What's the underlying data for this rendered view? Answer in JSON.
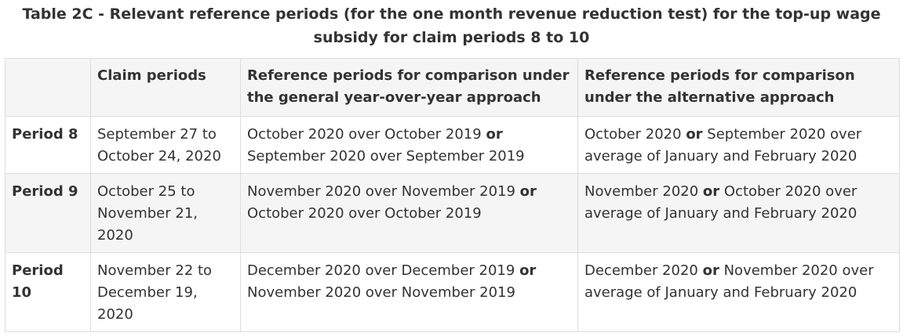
{
  "caption": "Table 2C - Relevant reference periods (for the one month revenue reduction test) for the top-up wage subsidy for claim periods 8 to 10",
  "headers": {
    "blank": "",
    "claim_periods": "Claim periods",
    "general": "Reference periods for comparison under the general year-over-year approach",
    "alternative": "Reference periods for comparison under the alternative approach"
  },
  "conjunction": "or",
  "rows": [
    {
      "period": "Period 8",
      "dates": "September 27 to October 24, 2020",
      "general_a": "October 2020 over October 2019",
      "general_b": "September 2020 over September 2019",
      "alt_a": "October 2020",
      "alt_b": "September 2020 over average of January and February 2020"
    },
    {
      "period": "Period 9",
      "dates": "October 25 to November 21, 2020",
      "general_a": "November 2020 over November 2019",
      "general_b": "October 2020 over October 2019",
      "alt_a": "November 2020",
      "alt_b": "October 2020 over average of January and February 2020"
    },
    {
      "period": "Period 10",
      "dates": "November 22 to December 19, 2020",
      "general_a": "December 2020 over December 2019",
      "general_b": "November 2020 over November 2019",
      "alt_a": "December 2020",
      "alt_b": "November 2020 over average of January and February 2020"
    }
  ]
}
